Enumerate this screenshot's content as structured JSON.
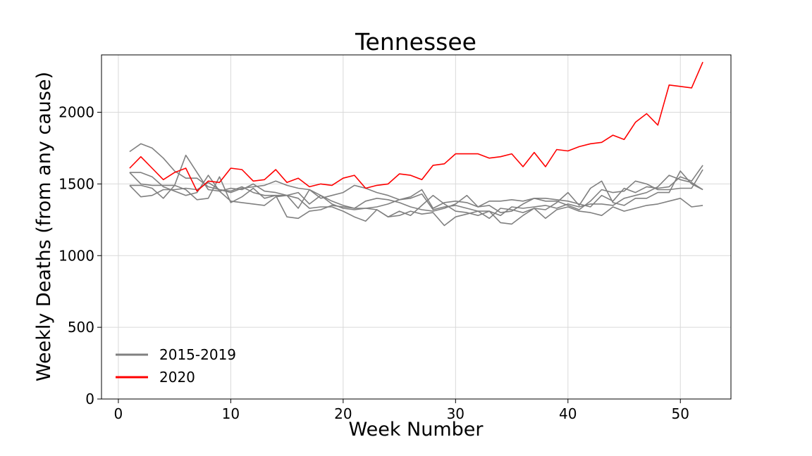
{
  "chart_data": {
    "type": "line",
    "title": "Tennessee",
    "xlabel": "Week Number",
    "ylabel": "Weekly Deaths (from any cause)",
    "xlim": [
      -1.5,
      54.5
    ],
    "ylim": [
      0,
      2400
    ],
    "xticks": [
      0,
      10,
      20,
      30,
      40,
      50
    ],
    "yticks": [
      0,
      500,
      1000,
      1500,
      2000
    ],
    "grid": true,
    "legend_position": "lower-left",
    "legend": [
      {
        "label": "2015-2019",
        "color": "#808080"
      },
      {
        "label": "2020",
        "color": "#ff0000"
      }
    ],
    "x": [
      1,
      2,
      3,
      4,
      5,
      6,
      7,
      8,
      9,
      10,
      11,
      12,
      13,
      14,
      15,
      16,
      17,
      18,
      19,
      20,
      21,
      22,
      23,
      24,
      25,
      26,
      27,
      28,
      29,
      30,
      31,
      32,
      33,
      34,
      35,
      36,
      37,
      38,
      39,
      40,
      41,
      42,
      43,
      44,
      45,
      46,
      47,
      48,
      49,
      50,
      51,
      52
    ],
    "series": [
      {
        "color": "#808080",
        "values": [
          1725,
          1780,
          1750,
          1680,
          1590,
          1540,
          1540,
          1480,
          1460,
          1450,
          1480,
          1440,
          1420,
          1420,
          1420,
          1400,
          1330,
          1340,
          1340,
          1310,
          1270,
          1240,
          1320,
          1270,
          1280,
          1310,
          1290,
          1300,
          1210,
          1270,
          1290,
          1310,
          1260,
          1330,
          1320,
          1300,
          1330,
          1260,
          1320,
          1340,
          1310,
          1300,
          1280,
          1340,
          1310,
          1330,
          1350,
          1360,
          1380,
          1400,
          1340,
          1350
        ]
      },
      {
        "color": "#808080",
        "values": [
          1580,
          1580,
          1550,
          1480,
          1450,
          1420,
          1440,
          1560,
          1450,
          1470,
          1460,
          1500,
          1450,
          1440,
          1420,
          1330,
          1460,
          1400,
          1420,
          1440,
          1490,
          1470,
          1440,
          1420,
          1390,
          1400,
          1430,
          1320,
          1340,
          1350,
          1330,
          1310,
          1310,
          1280,
          1340,
          1330,
          1340,
          1350,
          1330,
          1360,
          1340,
          1360,
          1360,
          1350,
          1400,
          1420,
          1440,
          1480,
          1560,
          1530,
          1510,
          1460
        ]
      },
      {
        "color": "#808080",
        "values": [
          1490,
          1410,
          1420,
          1460,
          1460,
          1470,
          1460,
          1510,
          1460,
          1440,
          1470,
          1480,
          1490,
          1520,
          1490,
          1470,
          1460,
          1420,
          1380,
          1350,
          1330,
          1380,
          1400,
          1390,
          1370,
          1340,
          1320,
          1310,
          1330,
          1360,
          1420,
          1340,
          1350,
          1300,
          1310,
          1360,
          1400,
          1380,
          1380,
          1350,
          1320,
          1380,
          1460,
          1440,
          1450,
          1520,
          1500,
          1460,
          1460,
          1470,
          1470,
          1600
        ]
      },
      {
        "color": "#808080",
        "values": [
          1580,
          1500,
          1490,
          1490,
          1490,
          1700,
          1580,
          1460,
          1450,
          1380,
          1370,
          1360,
          1350,
          1410,
          1420,
          1440,
          1360,
          1420,
          1360,
          1330,
          1320,
          1330,
          1340,
          1360,
          1390,
          1410,
          1460,
          1330,
          1370,
          1380,
          1370,
          1340,
          1380,
          1380,
          1390,
          1380,
          1400,
          1400,
          1390,
          1380,
          1360,
          1340,
          1420,
          1380,
          1470,
          1440,
          1480,
          1470,
          1480,
          1550,
          1520,
          1630
        ]
      },
      {
        "color": "#808080",
        "values": [
          1490,
          1490,
          1470,
          1400,
          1490,
          1460,
          1390,
          1400,
          1550,
          1370,
          1410,
          1470,
          1400,
          1420,
          1270,
          1260,
          1310,
          1320,
          1350,
          1340,
          1330,
          1330,
          1320,
          1270,
          1310,
          1280,
          1350,
          1420,
          1360,
          1310,
          1300,
          1280,
          1310,
          1230,
          1220,
          1280,
          1330,
          1320,
          1370,
          1440,
          1350,
          1470,
          1520,
          1370,
          1350,
          1400,
          1400,
          1440,
          1440,
          1590,
          1500,
          1460
        ]
      },
      {
        "color": "#ff0000",
        "values": [
          1610,
          1690,
          1610,
          1530,
          1580,
          1610,
          1450,
          1520,
          1510,
          1610,
          1600,
          1520,
          1530,
          1600,
          1510,
          1540,
          1480,
          1500,
          1490,
          1540,
          1560,
          1470,
          1490,
          1500,
          1570,
          1560,
          1530,
          1630,
          1640,
          1710,
          1710,
          1710,
          1680,
          1690,
          1710,
          1620,
          1720,
          1620,
          1740,
          1730,
          1760,
          1780,
          1790,
          1840,
          1810,
          1930,
          1990,
          1910,
          2190,
          2180,
          2170,
          2350
        ]
      }
    ]
  }
}
